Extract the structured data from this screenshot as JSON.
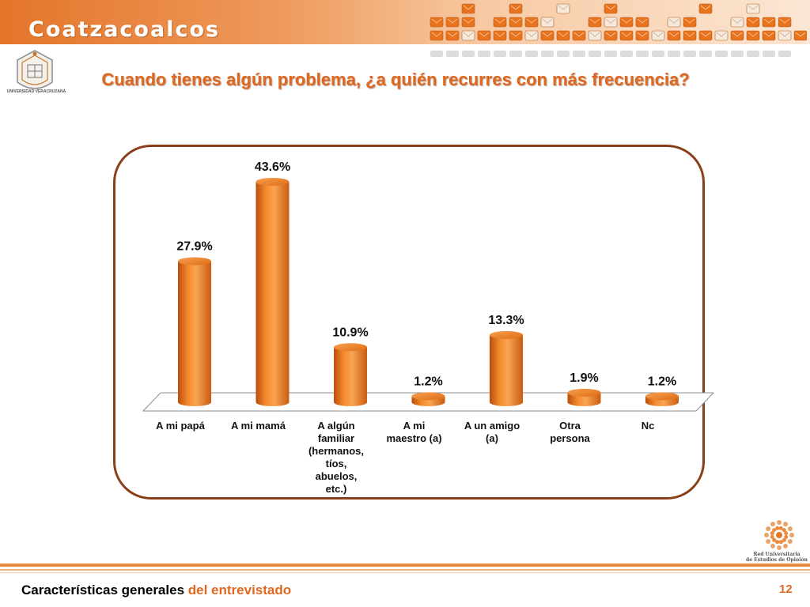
{
  "header": {
    "title": "Coatzacoalcos"
  },
  "logo_left": {
    "text": "UNIVERSIDAD VERACRUZANA",
    "icon": "university-seal-icon"
  },
  "question": "Cuando tienes algún problema, ¿a quién recurres con más frecuencia?",
  "logo_right": {
    "line1": "Red Universitaria",
    "line2": "de Estudios de Opinión",
    "icon": "network-flower-icon"
  },
  "footer": {
    "title_main": "Características generales",
    "title_sub": "del entrevistado",
    "page": "12"
  },
  "colors": {
    "accent": "#e0671e",
    "bar": "#f07c1a",
    "frame": "#8a3f1a"
  },
  "chart_data": {
    "type": "bar",
    "title": "",
    "xlabel": "",
    "ylabel": "",
    "ylim": [
      0,
      50
    ],
    "grid": false,
    "legend": "none",
    "categories": [
      "A mi papá",
      "A mi mamá",
      "A algún familiar (hermanos, tíos, abuelos, etc.)",
      "A mi maestro (a)",
      "A un amigo (a)",
      "Otra persona",
      "Nc"
    ],
    "category_lines": [
      [
        "A mi papá"
      ],
      [
        "A mi mamá"
      ],
      [
        "A algún",
        "familiar",
        "(hermanos,",
        "tíos,",
        "abuelos,",
        "etc.)"
      ],
      [
        "A mi",
        "maestro (a)"
      ],
      [
        "A un amigo",
        "(a)"
      ],
      [
        "Otra",
        "persona"
      ],
      [
        "Nc"
      ]
    ],
    "values": [
      27.9,
      43.6,
      10.9,
      1.2,
      13.3,
      1.9,
      1.2
    ],
    "data_labels": [
      "27.9%",
      "43.6%",
      "10.9%",
      "1.2%",
      "13.3%",
      "1.9%",
      "1.2%"
    ]
  }
}
